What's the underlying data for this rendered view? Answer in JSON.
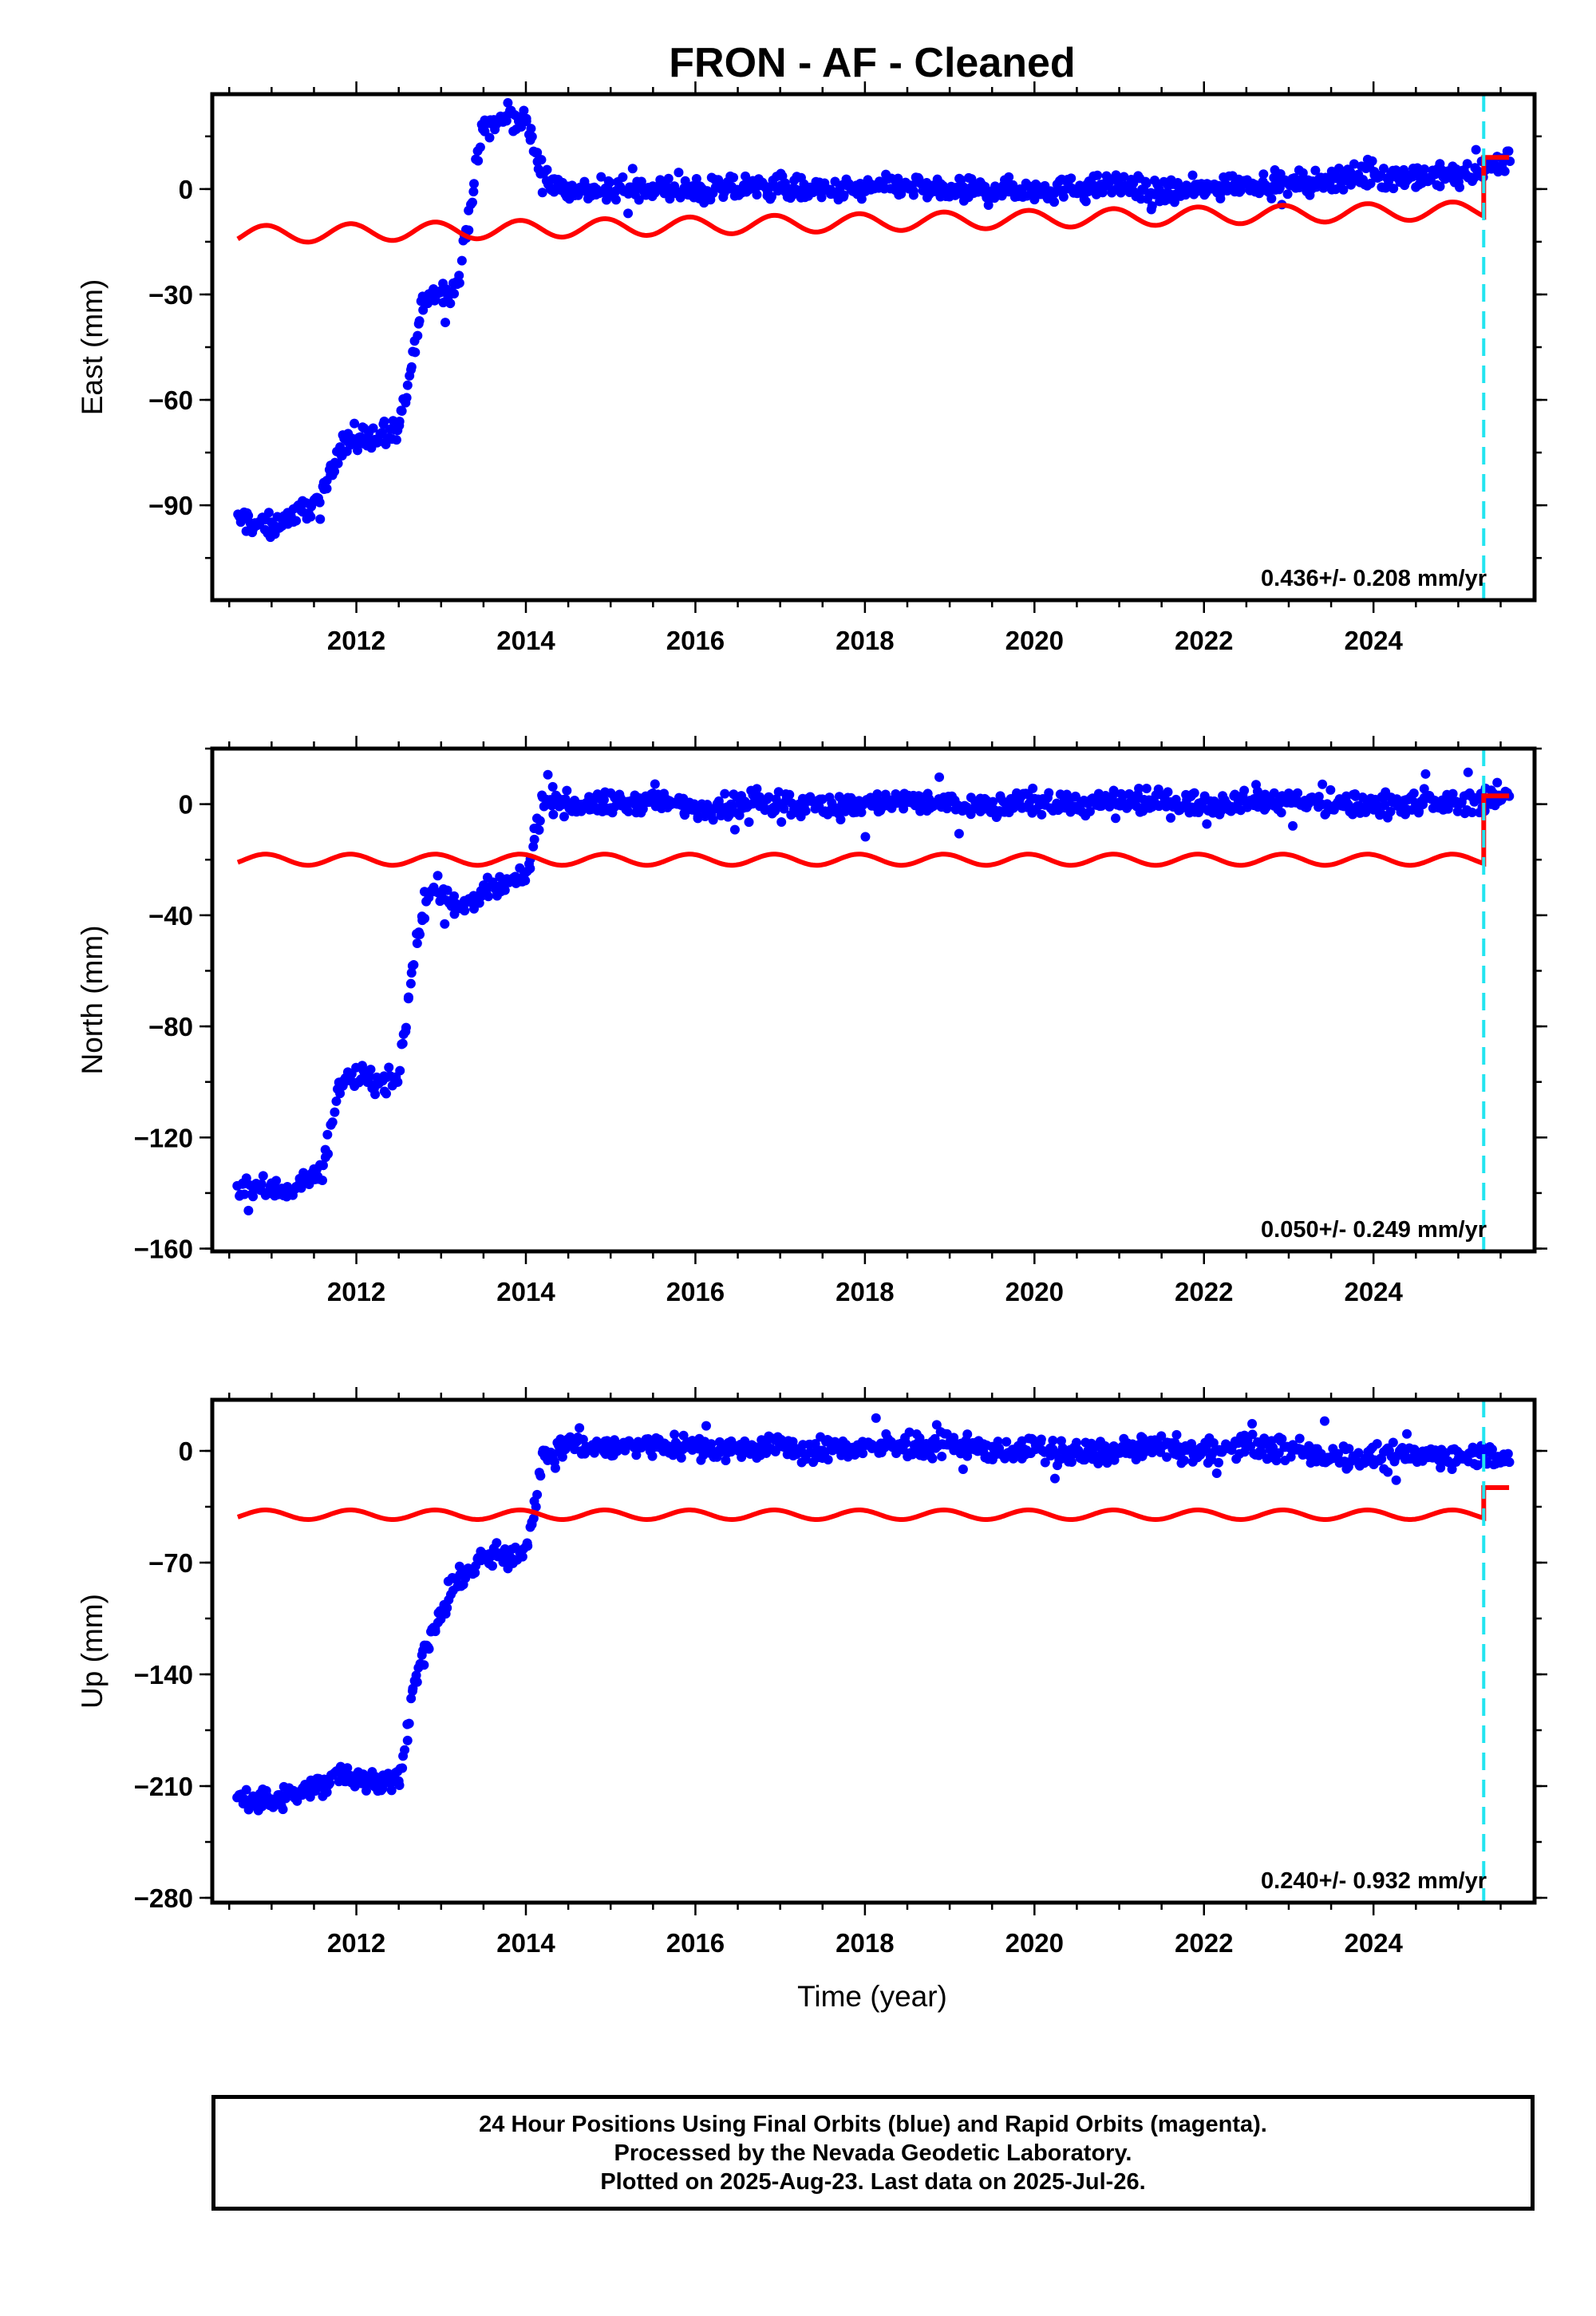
{
  "chart_data": {
    "type": "scatter",
    "title": "FRON  - AF - Cleaned",
    "xlabel": "Time (year)",
    "xlim": [
      2010.3,
      2025.9
    ],
    "xticks": [
      2012,
      2014,
      2016,
      2018,
      2020,
      2022,
      2024
    ],
    "offset_marker_x": 2025.3,
    "panels": [
      {
        "name": "east",
        "ylabel": "East (mm)",
        "ylim": [
          -117,
          27
        ],
        "yticks": [
          0,
          -30,
          -60,
          -90
        ],
        "yticklabels": [
          "0",
          "−30",
          "−60",
          "−90"
        ],
        "rate_text": "0.436+/- 0.208 mm/yr",
        "series": [
          {
            "color": "#0000ff",
            "kind": "points",
            "x": [
              2010.6,
              2010.8,
              2011.0,
              2011.3,
              2011.6,
              2011.8,
              2012.0,
              2012.3,
              2012.5,
              2012.8,
              2013.1,
              2013.2,
              2013.5,
              2013.8,
              2014.0,
              2014.2,
              2014.5,
              2015.0,
              2015.5,
              2016.0,
              2016.5,
              2017.0,
              2017.5,
              2018.0,
              2018.5,
              2019.0,
              2019.5,
              2020.0,
              2020.5,
              2021.0,
              2021.5,
              2022.0,
              2022.5,
              2023.0,
              2023.5,
              2024.0,
              2024.5,
              2025.0,
              2025.3,
              2025.6
            ],
            "y": [
              -94,
              -95,
              -96,
              -92,
              -88,
              -73,
              -71,
              -70,
              -70,
              -31,
              -29,
              -27,
              18,
              20,
              20,
              3,
              0,
              -1,
              0,
              -1,
              0,
              1,
              -1,
              0,
              1,
              -1,
              0,
              0,
              0,
              1,
              -1,
              0,
              2,
              1,
              3,
              4,
              3,
              4,
              5,
              9
            ]
          }
        ],
        "model": {
          "start": -13,
          "end": -6,
          "amplitude": 2.5,
          "jump": [
            2025.3,
            9
          ]
        }
      },
      {
        "name": "north",
        "ylabel": "North (mm)",
        "ylim": [
          -161,
          20
        ],
        "yticks": [
          0,
          -40,
          -80,
          -120,
          -160
        ],
        "yticklabels": [
          "0",
          "−40",
          "−80",
          "−120",
          "−160"
        ],
        "rate_text": "0.050+/- 0.249 mm/yr",
        "series": [
          {
            "color": "#0000ff",
            "kind": "points",
            "x": [
              2010.6,
              2010.8,
              2011.0,
              2011.3,
              2011.6,
              2011.8,
              2012.0,
              2012.3,
              2012.5,
              2012.7,
              2012.9,
              2013.2,
              2013.5,
              2013.8,
              2014.0,
              2014.2,
              2014.5,
              2015.0,
              2015.5,
              2016.0,
              2016.5,
              2017.0,
              2017.5,
              2018.0,
              2018.5,
              2019.0,
              2019.5,
              2020.0,
              2020.5,
              2021.0,
              2021.5,
              2022.0,
              2022.5,
              2023.0,
              2023.5,
              2024.0,
              2024.5,
              2025.0,
              2025.3,
              2025.6
            ],
            "y": [
              -137,
              -138,
              -139,
              -138,
              -132,
              -100,
              -99,
              -100,
              -99,
              -50,
              -28,
              -38,
              -32,
              -29,
              -27,
              2,
              0,
              0,
              1,
              -1,
              0,
              1,
              -1,
              0,
              1,
              0,
              -1,
              1,
              0,
              0,
              1,
              0,
              2,
              1,
              0,
              0,
              1,
              0,
              2,
              3
            ]
          }
        ],
        "model": {
          "start": -20,
          "end": -20,
          "amplitude": 2,
          "jump": [
            2025.3,
            3
          ]
        }
      },
      {
        "name": "up",
        "ylabel": "Up (mm)",
        "ylim": [
          -283,
          32
        ],
        "yticks": [
          0,
          -70,
          -140,
          -210,
          -280
        ],
        "yticklabels": [
          "0",
          "−70",
          "−140",
          "−210",
          "−280"
        ],
        "rate_text": "0.240+/- 0.932 mm/yr",
        "series": [
          {
            "color": "#0000ff",
            "kind": "points",
            "x": [
              2010.6,
              2010.8,
              2011.0,
              2011.3,
              2011.6,
              2011.8,
              2012.0,
              2012.3,
              2012.5,
              2012.7,
              2012.9,
              2013.2,
              2013.5,
              2013.8,
              2014.0,
              2014.2,
              2014.5,
              2015.0,
              2015.5,
              2016.0,
              2016.5,
              2017.0,
              2017.5,
              2018.0,
              2018.5,
              2019.0,
              2019.5,
              2020.0,
              2020.5,
              2021.0,
              2021.5,
              2022.0,
              2022.5,
              2023.0,
              2023.5,
              2024.0,
              2024.5,
              2025.0,
              2025.3,
              2025.6
            ],
            "y": [
              -216,
              -218,
              -220,
              -215,
              -210,
              -200,
              -205,
              -208,
              -205,
              -140,
              -115,
              -80,
              -68,
              -65,
              -62,
              -5,
              5,
              2,
              4,
              3,
              1,
              2,
              0,
              3,
              2,
              4,
              0,
              1,
              -2,
              0,
              2,
              -1,
              3,
              1,
              -3,
              -5,
              -2,
              -4,
              -2,
              -3
            ]
          }
        ],
        "model": {
          "start": -40,
          "end": -40,
          "amplitude": 3,
          "jump": [
            2025.3,
            -23
          ]
        }
      }
    ]
  },
  "footer": {
    "line1": "24 Hour Positions Using Final Orbits (blue) and Rapid Orbits (magenta).",
    "line2": "Processed by the Nevada Geodetic Laboratory.",
    "line3": "Plotted on 2025-Aug-23. Last data on 2025-Jul-26."
  }
}
